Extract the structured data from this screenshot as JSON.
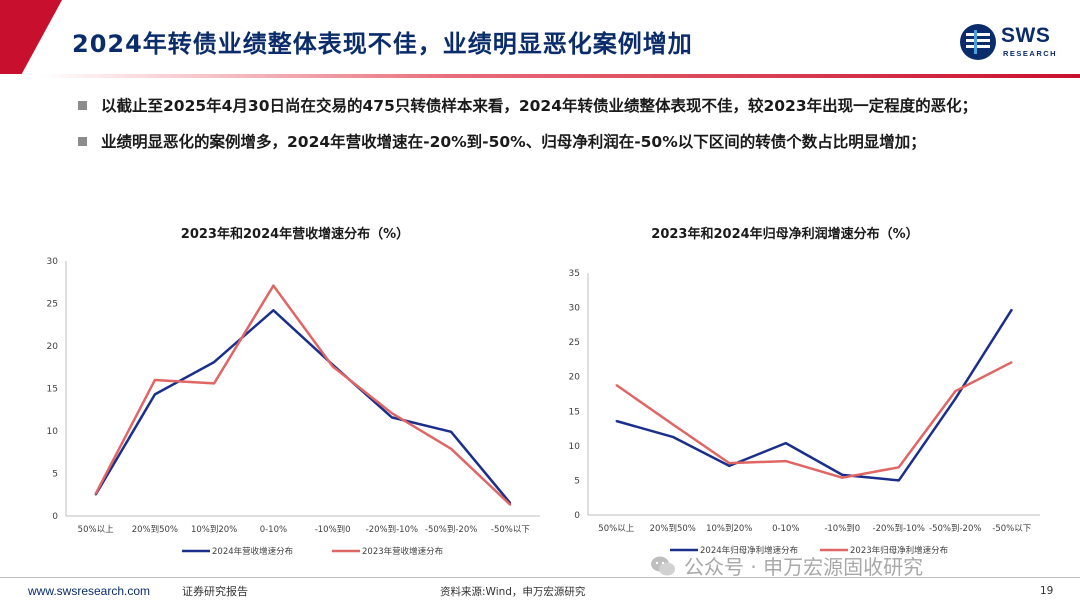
{
  "header": {
    "title": "2024年转债业绩整体表现不佳，业绩明显恶化案例增加",
    "logo_text": "SWS",
    "logo_sub": "RESEARCH"
  },
  "bullets": [
    "以截止至2025年4月30日尚在交易的475只转债样本来看，2024年转债业绩整体表现不佳，较2023年出现一定程度的恶化；",
    "业绩明显恶化的案例增多，2024年营收增速在-20%到-50%、归母净利润在-50%以下区间的转债个数占比明显增加；"
  ],
  "colors": {
    "series_2024": "#1b2f8a",
    "series_2023": "#e06666",
    "brand": "#0b2c6b",
    "accent": "#c8102e"
  },
  "chart_data": [
    {
      "type": "line",
      "title": "2023年和2024年营收增速分布（%）",
      "categories": [
        "50%以上",
        "20%到50%",
        "10%到20%",
        "0-10%",
        "-10%到0",
        "-20%到-10%",
        "-50%到-20%",
        "-50%以下"
      ],
      "yticks": [
        "0",
        "5",
        "10",
        "15",
        "20",
        "25",
        "30"
      ],
      "ylim": [
        0,
        30
      ],
      "series": [
        {
          "name": "2024年营收增速分布",
          "values": [
            2.5,
            14.3,
            18.1,
            24.2,
            17.8,
            11.6,
            9.9,
            1.5
          ]
        },
        {
          "name": "2023年营收增速分布",
          "values": [
            2.6,
            16.0,
            15.6,
            27.1,
            17.6,
            12.1,
            7.9,
            1.3
          ]
        }
      ],
      "legend": "bottom"
    },
    {
      "type": "line",
      "title": "2023年和2024年归母净利润增速分布（%）",
      "categories": [
        "50%以上",
        "20%到50%",
        "10%到20%",
        "0-10%",
        "-10%到0",
        "-20%到-10%",
        "-50%到-20%",
        "-50%以下"
      ],
      "yticks": [
        "0",
        "5",
        "10",
        "15",
        "20",
        "25",
        "30",
        "35"
      ],
      "ylim": [
        0,
        35
      ],
      "series": [
        {
          "name": "2024年归母净利增速分布",
          "values": [
            13.6,
            11.3,
            7.1,
            10.4,
            5.8,
            5.0,
            16.8,
            29.7
          ]
        },
        {
          "name": "2023年归母净利增速分布",
          "values": [
            18.8,
            13.1,
            7.5,
            7.8,
            5.4,
            6.9,
            17.9,
            22.1
          ]
        }
      ],
      "legend": "bottom"
    }
  ],
  "footer": {
    "url": "www.swsresearch.com",
    "label": "证券研究报告",
    "source": "资料来源:Wind，申万宏源研究",
    "page": "19",
    "watermark": "公众号 · 申万宏源固收研究"
  }
}
